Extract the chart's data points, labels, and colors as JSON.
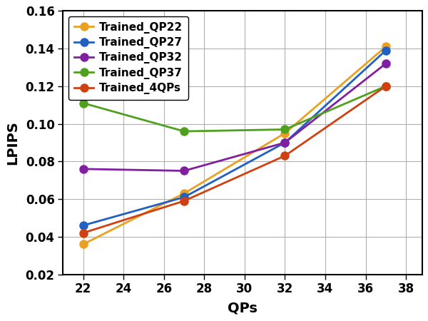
{
  "x": [
    22,
    27,
    32,
    37
  ],
  "series": {
    "Trained_QP22": {
      "y": [
        0.036,
        0.063,
        0.095,
        0.141
      ],
      "color": "#EAA020",
      "marker": "o"
    },
    "Trained_QP27": {
      "y": [
        0.046,
        0.061,
        0.09,
        0.139
      ],
      "color": "#2060C0",
      "marker": "o"
    },
    "Trained_QP32": {
      "y": [
        0.076,
        0.075,
        0.09,
        0.132
      ],
      "color": "#8020A0",
      "marker": "o"
    },
    "Trained_QP37": {
      "y": [
        0.111,
        0.096,
        0.097,
        0.12
      ],
      "color": "#50A020",
      "marker": "o"
    },
    "Trained_4QPs": {
      "y": [
        0.042,
        0.059,
        0.083,
        0.12
      ],
      "color": "#D04010",
      "marker": "o"
    }
  },
  "xlabel": "QPs",
  "ylabel": "LPIPS",
  "xlim": [
    21.0,
    38.8
  ],
  "ylim": [
    0.02,
    0.16
  ],
  "xticks": [
    22,
    24,
    26,
    28,
    30,
    32,
    34,
    36,
    38
  ],
  "yticks": [
    0.02,
    0.04,
    0.06,
    0.08,
    0.1,
    0.12,
    0.14,
    0.16
  ],
  "legend_labels": [
    "Trained_QP22",
    "Trained_QP27",
    "Trained_QP32",
    "Trained_QP37",
    "Trained_4QPs"
  ],
  "grid": true,
  "linewidth": 2.0,
  "markersize": 8
}
